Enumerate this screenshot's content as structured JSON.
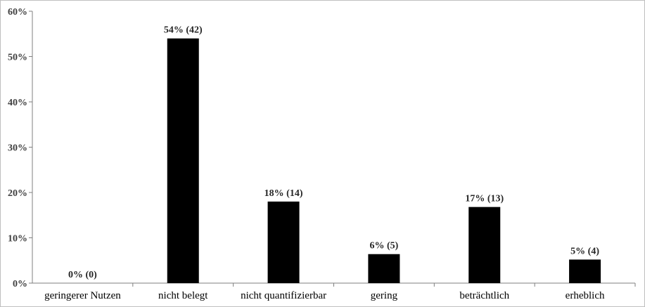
{
  "chart_data": {
    "type": "bar",
    "title": "",
    "xlabel": "",
    "ylabel": "",
    "categories": [
      "geringerer Nutzen",
      "nicht belegt",
      "nicht quantifizierbar",
      "gering",
      "beträchtlich",
      "erheblich"
    ],
    "values": [
      0,
      54,
      18,
      6.4,
      16.8,
      5.2
    ],
    "data_labels": [
      "0% (0)",
      "54% (42)",
      "18% (14)",
      "6% (5)",
      "17% (13)",
      "5% (4)"
    ],
    "ylim": [
      0,
      60
    ],
    "yticks": [
      0,
      10,
      20,
      30,
      40,
      50,
      60
    ],
    "ytick_labels": [
      "0%",
      "10%",
      "20%",
      "30%",
      "40%",
      "50%",
      "60%"
    ],
    "grid": false,
    "legend": "none",
    "bar_color": "#000000",
    "axis_color": "#7f7f7f"
  }
}
